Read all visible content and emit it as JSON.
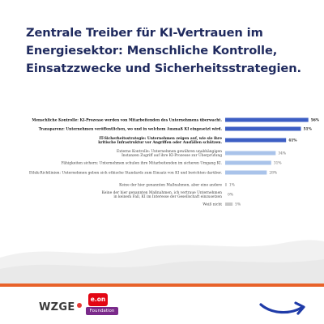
{
  "headline": "Zentrale Treiber für KI-Vertrauen im Energiesektor: Menschliche Kontrolle, Einsatzzwecke und Sicherheitsstrategien.",
  "colors": {
    "headline": "#1f2a5e",
    "bar_strong": "#3d5fc4",
    "bar_light": "#a9c3ea",
    "bar_faint": "#c8c8c8",
    "footer_rule": "#e8622a",
    "footer_bg": "#ffffff",
    "arrow": "#1f3ba8",
    "eon_red": "#e30613",
    "foundation_purple": "#7a2a8a"
  },
  "chart_data": {
    "type": "bar",
    "orientation": "horizontal",
    "unit": "%",
    "categories": [
      "Menschliche Kontrolle: KI-Prozesse werden von Mitarbeitenden des Unternehmens überwacht.",
      "Transparenz: Unternehmen veröffentlichen, wo und in welchem Ausmaß KI eingesetzt wird.",
      "IT-Sicherheitsstrategie: Unternehmen zeigen auf, wie sie ihre kritische Infrastruktur vor Angriffen oder Ausfällen schützen.",
      "Externe Kontrolle: Unternehmen gewähren unabhängigen Instanzen Zugriff auf ihre KI-Prozesse zur Überprüfung",
      "Fähigkeiten sichern: Unternehmen schulen ihre Mitarbeitenden im sicheren Umgang KI.",
      "Ethik-Richtlinien: Unternehmen geben sich ethische Standards zum Einsatz von KI und berichten darüber.",
      "Keine der hier genannten Maßnahmen, aber eine andere",
      "Keine der hier genannten Maßnahmen, ich vertraue Unternehmen in keinem Fall, KI im Interesse der Gesellschaft einzusetzen",
      "Weiß nicht"
    ],
    "values": [
      56,
      51,
      41,
      34,
      31,
      28,
      1,
      0,
      5
    ],
    "value_labels": [
      "56%",
      "51%",
      "41%",
      "34%",
      "31%",
      "28%",
      "1%",
      "0%",
      "5%"
    ],
    "emphasis": [
      "strong",
      "strong",
      "strong",
      "light",
      "light",
      "light",
      "faint",
      "faint",
      "faint"
    ],
    "xlim": [
      0,
      60
    ],
    "grid": false,
    "legend": false
  },
  "footer": {
    "logo_wzge": "WZGE",
    "logo_eon": "e.on",
    "logo_foundation": "Foundation"
  }
}
